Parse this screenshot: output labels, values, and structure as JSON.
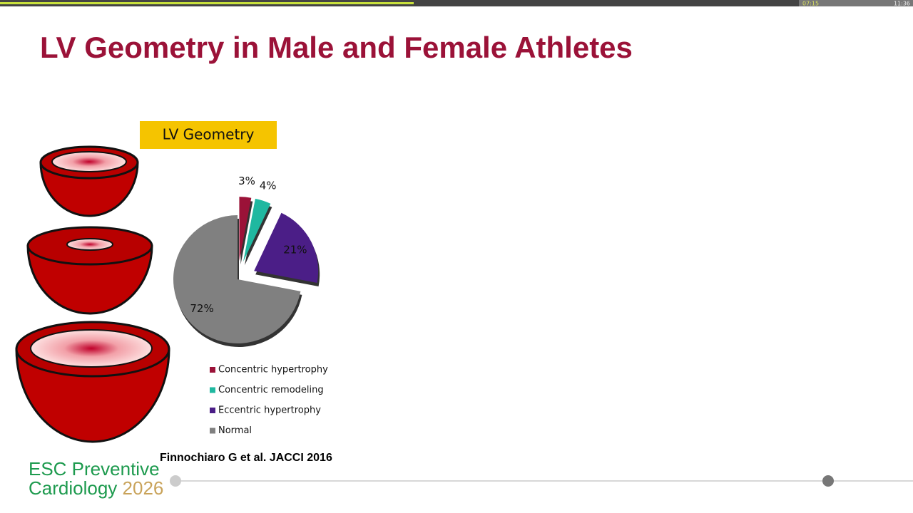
{
  "player": {
    "elapsed": "07:15",
    "total": "11:36"
  },
  "slide": {
    "title": "LV Geometry in Male and Female Athletes",
    "citation": "Finnochiaro G et al.  JACCI 2016",
    "logo_line1": "ESC Preventive",
    "logo_line2": "Cardiology",
    "logo_year": "2026"
  },
  "chart_data": {
    "type": "pie",
    "title": "LV Geometry",
    "categories": [
      "Concentric hypertrophy",
      "Concentric remodeling",
      "Eccentric hypertrophy",
      "Normal"
    ],
    "values": [
      3,
      4,
      21,
      72
    ],
    "value_labels": [
      "3%",
      "4%",
      "21%",
      "72%"
    ],
    "colors": [
      "#9b1238",
      "#1fb8a0",
      "#4b1e87",
      "#808080"
    ]
  }
}
